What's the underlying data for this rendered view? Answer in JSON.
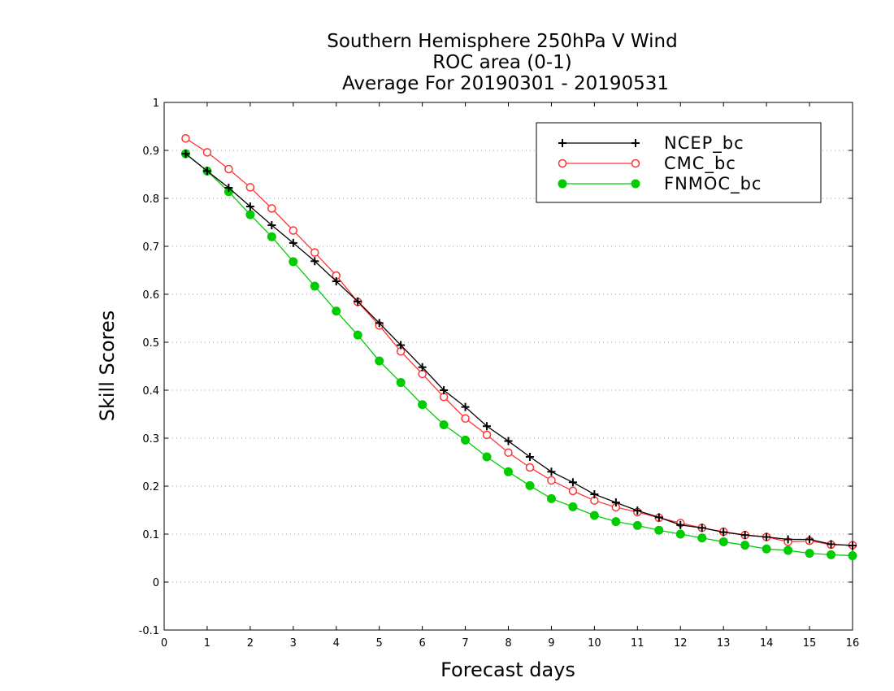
{
  "chart_data": {
    "type": "line",
    "title": [
      "Southern Hemisphere 250hPa V Wind",
      "ROC area (0-1)",
      "Average For 20190301 - 20190531"
    ],
    "xlabel": "Forecast days",
    "ylabel": "Skill Scores",
    "xlim": [
      0,
      16
    ],
    "ylim": [
      -0.1,
      1
    ],
    "xticks": [
      "0",
      "1",
      "2",
      "3",
      "4",
      "5",
      "6",
      "7",
      "8",
      "9",
      "10",
      "11",
      "12",
      "13",
      "14",
      "15",
      "16"
    ],
    "yticks": [
      "-0.1",
      "0",
      "0.1",
      "0.2",
      "0.3",
      "0.4",
      "0.5",
      "0.6",
      "0.7",
      "0.8",
      "0.9",
      "1"
    ],
    "grid": true,
    "legend_position": "top-right",
    "x": [
      0.5,
      1,
      1.5,
      2,
      2.5,
      3,
      3.5,
      4,
      4.5,
      5,
      5.5,
      6,
      6.5,
      7,
      7.5,
      8,
      8.5,
      9,
      9.5,
      10,
      10.5,
      11,
      11.5,
      12,
      12.5,
      13,
      13.5,
      14,
      14.5,
      15,
      15.5,
      16
    ],
    "series": [
      {
        "name": "NCEP_bc",
        "color": "#000000",
        "marker": "plus",
        "values": [
          0.893,
          0.857,
          0.822,
          0.783,
          0.744,
          0.707,
          0.669,
          0.627,
          0.585,
          0.54,
          0.494,
          0.448,
          0.4,
          0.365,
          0.325,
          0.294,
          0.261,
          0.23,
          0.208,
          0.183,
          0.166,
          0.149,
          0.135,
          0.119,
          0.113,
          0.104,
          0.098,
          0.094,
          0.089,
          0.089,
          0.079,
          0.076
        ]
      },
      {
        "name": "CMC_bc",
        "color": "#ff3333",
        "marker": "open-circle",
        "values": [
          0.925,
          0.896,
          0.861,
          0.823,
          0.779,
          0.733,
          0.687,
          0.639,
          0.584,
          0.535,
          0.481,
          0.434,
          0.386,
          0.341,
          0.307,
          0.27,
          0.239,
          0.212,
          0.19,
          0.17,
          0.156,
          0.146,
          0.134,
          0.123,
          0.113,
          0.105,
          0.098,
          0.094,
          0.084,
          0.086,
          0.078,
          0.077
        ]
      },
      {
        "name": "FNMOC_bc",
        "color": "#00cc00",
        "marker": "filled-circle",
        "values": [
          0.893,
          0.857,
          0.814,
          0.766,
          0.72,
          0.668,
          0.617,
          0.565,
          0.515,
          0.461,
          0.416,
          0.37,
          0.328,
          0.296,
          0.261,
          0.23,
          0.201,
          0.174,
          0.157,
          0.139,
          0.126,
          0.118,
          0.108,
          0.1,
          0.092,
          0.084,
          0.077,
          0.069,
          0.066,
          0.06,
          0.057,
          0.055
        ]
      }
    ]
  }
}
